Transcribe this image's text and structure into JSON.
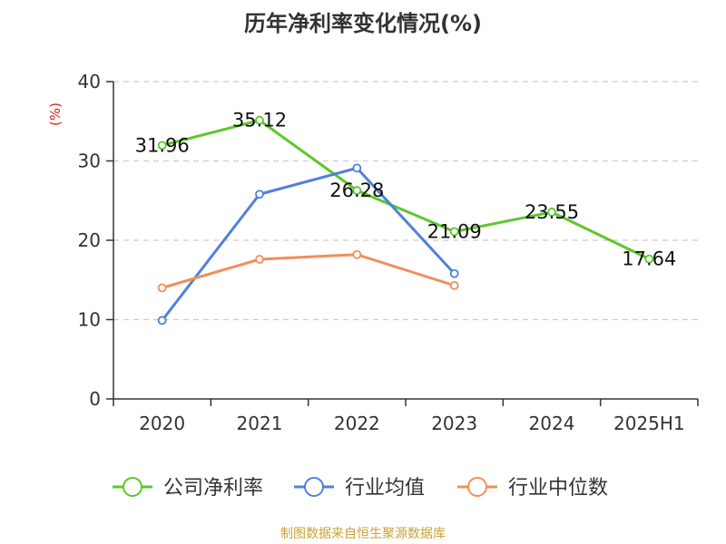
{
  "chart_data": {
    "type": "line",
    "title": "历年净利率变化情况(%)",
    "ylabel": "(%)",
    "categories": [
      "2020",
      "2021",
      "2022",
      "2023",
      "2024",
      "2025H1"
    ],
    "ylim": [
      0,
      40
    ],
    "yticks": [
      "0",
      "10",
      "20",
      "30",
      "40"
    ],
    "grid": true,
    "legend_position": "bottom",
    "series": [
      {
        "name": "公司净利率",
        "color": "#5cc72b",
        "values": [
          31.96,
          35.12,
          26.28,
          21.09,
          23.55,
          17.64
        ],
        "labels": [
          "31.96",
          "35.12",
          "26.28",
          "21.09",
          "23.55",
          "17.64"
        ]
      },
      {
        "name": "行业均值",
        "color": "#4f81d9",
        "values": [
          9.9,
          25.8,
          29.1,
          15.8,
          null,
          null
        ]
      },
      {
        "name": "行业中位数",
        "color": "#f28e5b",
        "values": [
          14.0,
          17.6,
          18.2,
          14.3,
          null,
          null
        ]
      }
    ]
  },
  "source": "制图数据来自恒生聚源数据库"
}
